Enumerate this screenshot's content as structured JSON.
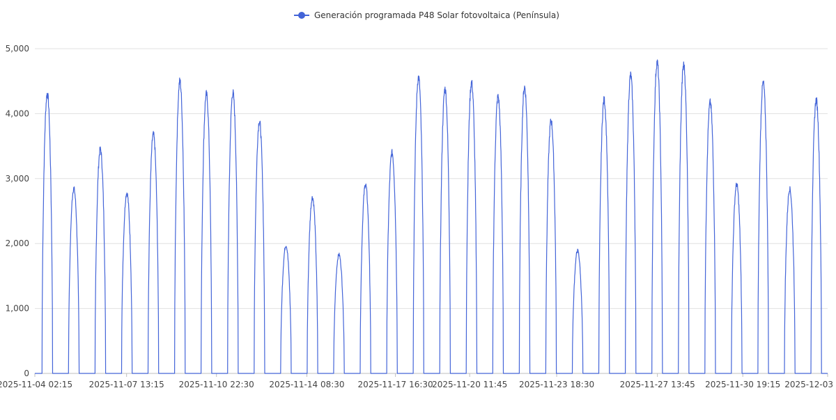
{
  "chart_data": {
    "type": "line",
    "title": "",
    "xlabel": "",
    "ylabel": "",
    "ylim": [
      0,
      5000
    ],
    "yticks": [
      "0",
      "1,000",
      "2,000",
      "3,000",
      "4,000",
      "5,000"
    ],
    "yticks_values": [
      0,
      1000,
      2000,
      3000,
      4000,
      5000
    ],
    "xticks": [
      "2025-11-04 02:15",
      "2025-11-07 13:15",
      "2025-11-10 22:30",
      "2025-11-14 08:30",
      "2025-11-17 16:30",
      "2025-11-20 11:45",
      "2025-11-23 18:30",
      "2025-11-27 13:45",
      "2025-11-30 19:15",
      "2025-12-03"
    ],
    "x_range_days": [
      0,
      29.9
    ],
    "xticks_days": [
      0,
      3.46,
      6.85,
      10.26,
      13.6,
      16.4,
      19.68,
      23.48,
      26.7,
      29.9
    ],
    "series": [
      {
        "name": "Generación programada P48 Solar fotovoltaica (Península)",
        "color": "#4364d8",
        "peaks": [
          4310,
          2850,
          3450,
          2780,
          3680,
          4500,
          4300,
          4320,
          3880,
          1970,
          2710,
          1830,
          2910,
          3400,
          4560,
          4380,
          4480,
          4260,
          4410,
          3890,
          1890,
          4210,
          4590,
          4790,
          4750,
          4170,
          2910,
          4470,
          2840,
          4210
        ],
        "day_offset_days": 0.12
      }
    ]
  }
}
